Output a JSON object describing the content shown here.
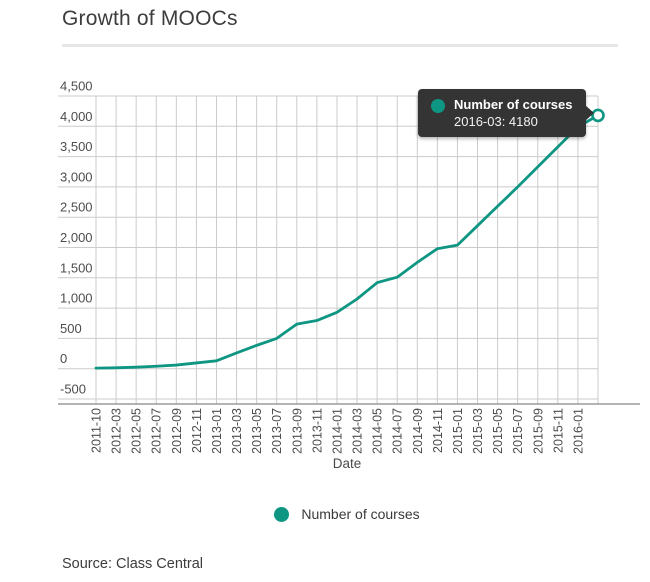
{
  "page": {
    "title": "Growth of MOOCs",
    "source": "Source: Class Central"
  },
  "chart_data": {
    "type": "line",
    "title": "Growth of MOOCs",
    "xlabel": "Date",
    "ylabel": "",
    "ylim": [
      -500,
      4500
    ],
    "y_tick_step": 500,
    "y_ticks": [
      "-500",
      "0",
      "500",
      "1,000",
      "1,500",
      "2,000",
      "2,500",
      "3,000",
      "3,500",
      "4,000",
      "4,500"
    ],
    "grid": true,
    "legend_position": "bottom",
    "categories": [
      "2011-10",
      "2012-03",
      "2012-05",
      "2012-07",
      "2012-09",
      "2012-11",
      "2013-01",
      "2013-03",
      "2013-05",
      "2013-07",
      "2013-09",
      "2013-11",
      "2014-01",
      "2014-03",
      "2014-05",
      "2014-07",
      "2014-09",
      "2014-11",
      "2015-01",
      "2015-03",
      "2015-05",
      "2015-07",
      "2015-09",
      "2015-11",
      "2016-01",
      "2016-03"
    ],
    "x_tick_labels": [
      "2011-10",
      "2012-03",
      "2012-05",
      "2012-07",
      "2012-09",
      "2012-11",
      "2013-01",
      "2013-03",
      "2013-05",
      "2013-07",
      "2013-09",
      "2013-11",
      "2014-01",
      "2014-03",
      "2014-05",
      "2014-07",
      "2014-09",
      "2014-11",
      "2015-01",
      "2015-03",
      "2015-05",
      "2015-07",
      "2015-09",
      "2015-11",
      "2016-01"
    ],
    "series": [
      {
        "name": "Number of courses",
        "color": "#0e9682",
        "values": [
          10,
          15,
          25,
          40,
          60,
          95,
          130,
          260,
          385,
          500,
          735,
          795,
          930,
          1150,
          1420,
          1510,
          1755,
          1980,
          2040,
          2360,
          2680,
          3000,
          3330,
          3660,
          3990,
          4180
        ]
      }
    ],
    "highlighted_point": {
      "category": "2016-03",
      "value": 4180
    }
  },
  "ui": {
    "tooltip": {
      "series": "Number of courses",
      "value_text": "2016-03: 4180",
      "bg": "#343434"
    },
    "colors": {
      "accent": "#0e9682",
      "gridline": "#cbcbcb",
      "axis_line": "#9a9a9a",
      "tick_label": "#4d4d4d"
    }
  }
}
